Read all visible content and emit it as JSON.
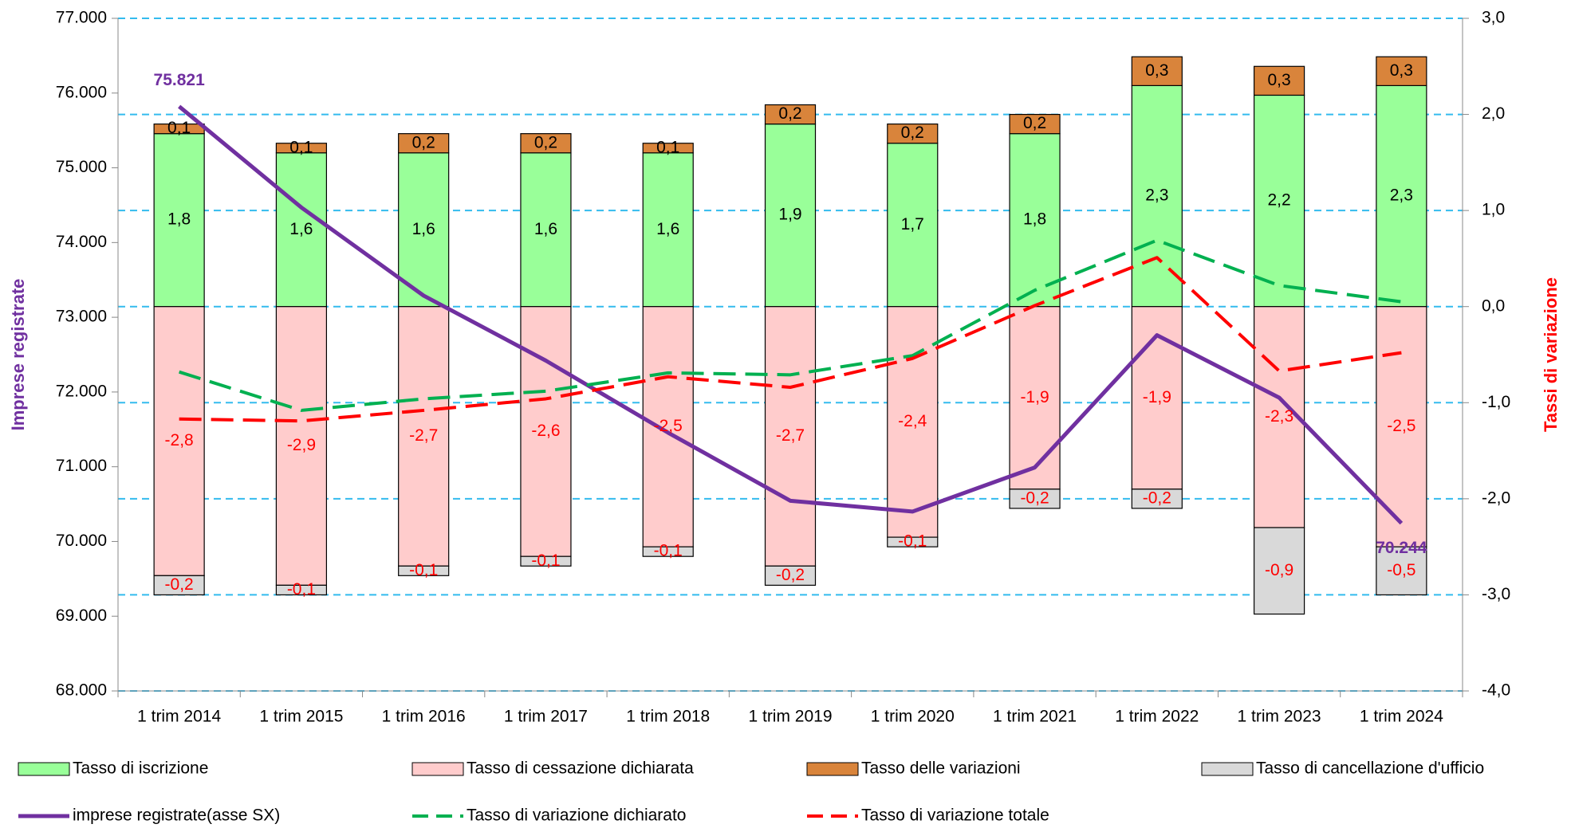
{
  "chart_data": {
    "type": "bar",
    "categories": [
      "1 trim 2014",
      "1 trim 2015",
      "1 trim 2016",
      "1 trim 2017",
      "1 trim 2018",
      "1 trim 2019",
      "1 trim 2020",
      "1 trim 2021",
      "1 trim 2022",
      "1 trim 2023",
      "1 trim 2024"
    ],
    "ylabel": "Imprese registrate",
    "y2label": "Tassi di variazione",
    "ylim": [
      68000,
      77000
    ],
    "yticks": [
      {
        "value": 68000,
        "label": "68.000"
      },
      {
        "value": 69000,
        "label": "69.000"
      },
      {
        "value": 70000,
        "label": "70.000"
      },
      {
        "value": 71000,
        "label": "71.000"
      },
      {
        "value": 72000,
        "label": "72.000"
      },
      {
        "value": 73000,
        "label": "73.000"
      },
      {
        "value": 74000,
        "label": "74.000"
      },
      {
        "value": 75000,
        "label": "75.000"
      },
      {
        "value": 76000,
        "label": "76.000"
      },
      {
        "value": 77000,
        "label": "77.000"
      }
    ],
    "y2lim": [
      -4,
      3
    ],
    "y2ticks": [
      {
        "value": -4,
        "label": "-4,0"
      },
      {
        "value": -3,
        "label": "-3,0"
      },
      {
        "value": -2,
        "label": "-2,0"
      },
      {
        "value": -1,
        "label": "-1,0"
      },
      {
        "value": 0,
        "label": "0,0"
      },
      {
        "value": 1,
        "label": "1,0"
      },
      {
        "value": 2,
        "label": "2,0"
      },
      {
        "value": 3,
        "label": "3,0"
      }
    ],
    "grid": true,
    "series": [
      {
        "name": "Tasso di iscrizione",
        "type": "bar",
        "axis": "y2",
        "color": "#99ff99",
        "values": [
          1.8,
          1.6,
          1.6,
          1.6,
          1.6,
          1.9,
          1.7,
          1.8,
          2.3,
          2.2,
          2.3
        ],
        "value_labels": [
          "1,8",
          "1,6",
          "1,6",
          "1,6",
          "1,6",
          "1,9",
          "1,7",
          "1,8",
          "2,3",
          "2,2",
          "2,3"
        ]
      },
      {
        "name": "Tasso di cessazione dichiarata",
        "type": "bar",
        "axis": "y2",
        "color": "#ffcccc",
        "values": [
          -2.8,
          -2.9,
          -2.7,
          -2.6,
          -2.5,
          -2.7,
          -2.4,
          -1.9,
          -1.9,
          -2.3,
          -2.5
        ],
        "value_labels": [
          "-2,8",
          "-2,9",
          "-2,7",
          "-2,6",
          "-2,5",
          "-2,7",
          "-2,4",
          "-1,9",
          "-1,9",
          "-2,3",
          "-2,5"
        ]
      },
      {
        "name": "Tasso delle variazioni",
        "type": "bar",
        "axis": "y2",
        "color": "#d9843b",
        "values": [
          0.1,
          0.1,
          0.2,
          0.2,
          0.1,
          0.2,
          0.2,
          0.2,
          0.3,
          0.3,
          0.3
        ],
        "value_labels": [
          "0,1",
          "0,1",
          "0,2",
          "0,2",
          "0,1",
          "0,2",
          "0,2",
          "0,2",
          "0,3",
          "0,3",
          "0,3"
        ]
      },
      {
        "name": "Tasso di cancellazione d'ufficio",
        "type": "bar",
        "axis": "y2",
        "color": "#d9d9d9",
        "values": [
          -0.2,
          -0.1,
          -0.1,
          -0.1,
          -0.1,
          -0.2,
          -0.1,
          -0.2,
          -0.2,
          -0.9,
          -0.5
        ],
        "value_labels": [
          "-0,2",
          "-0,1",
          "-0,1",
          "-0,1",
          "-0,1",
          "-0,2",
          "-0,1",
          "-0,2",
          "-0,2",
          "-0,9",
          "-0,5"
        ]
      },
      {
        "name": "imprese registrate(asse SX)",
        "type": "line",
        "axis": "y",
        "color": "#7030a0",
        "dashed": false,
        "values": [
          75821,
          74469,
          73290,
          72420,
          71456,
          70545,
          70400,
          70990,
          72760,
          71924,
          70244
        ],
        "value_labels": [
          "75.821",
          null,
          null,
          null,
          null,
          null,
          null,
          null,
          null,
          null,
          "70.244"
        ]
      },
      {
        "name": "Tasso di variazione dichiarato",
        "type": "line",
        "axis": "y2",
        "color": "#00b050",
        "dashed": true,
        "values": [
          -0.68,
          -1.08,
          -0.96,
          -0.88,
          -0.69,
          -0.71,
          -0.51,
          0.17,
          0.69,
          0.22,
          0.05
        ]
      },
      {
        "name": "Tasso di variazione totale",
        "type": "line",
        "axis": "y2",
        "color": "#ff0000",
        "dashed": true,
        "values": [
          -1.17,
          -1.19,
          -1.08,
          -0.96,
          -0.73,
          -0.84,
          -0.54,
          0.01,
          0.51,
          -0.67,
          -0.48
        ]
      }
    ]
  }
}
